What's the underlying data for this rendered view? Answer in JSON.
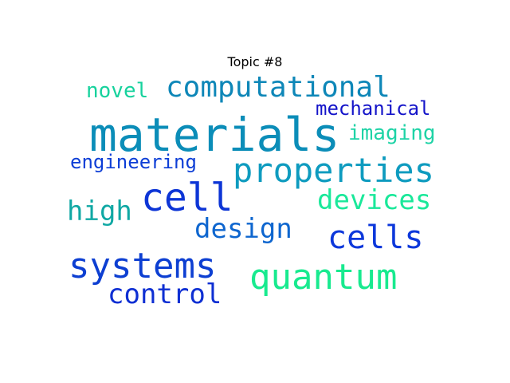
{
  "chart_data": {
    "type": "wordcloud",
    "title": "Topic #8",
    "words": [
      {
        "text": "materials",
        "weight": 1.0,
        "color": "#0b8db8"
      },
      {
        "text": "cell",
        "weight": 0.72,
        "color": "#0d35d6"
      },
      {
        "text": "properties",
        "weight": 0.68,
        "color": "#0e9bbf"
      },
      {
        "text": "systems",
        "weight": 0.66,
        "color": "#0d3fd2"
      },
      {
        "text": "quantum",
        "weight": 0.62,
        "color": "#18ea8f"
      },
      {
        "text": "cells",
        "weight": 0.6,
        "color": "#0d38db"
      },
      {
        "text": "computational",
        "weight": 0.54,
        "color": "#0e87b8"
      },
      {
        "text": "devices",
        "weight": 0.5,
        "color": "#1ae89a"
      },
      {
        "text": "high",
        "weight": 0.5,
        "color": "#10a8a4"
      },
      {
        "text": "design",
        "weight": 0.5,
        "color": "#0e66cf"
      },
      {
        "text": "control",
        "weight": 0.5,
        "color": "#0e2fd3"
      },
      {
        "text": "mechanical",
        "weight": 0.38,
        "color": "#1414c9"
      },
      {
        "text": "imaging",
        "weight": 0.38,
        "color": "#1ed3a6"
      },
      {
        "text": "novel",
        "weight": 0.36,
        "color": "#17d29d"
      },
      {
        "text": "engineering",
        "weight": 0.36,
        "color": "#0d3ed6"
      }
    ]
  }
}
